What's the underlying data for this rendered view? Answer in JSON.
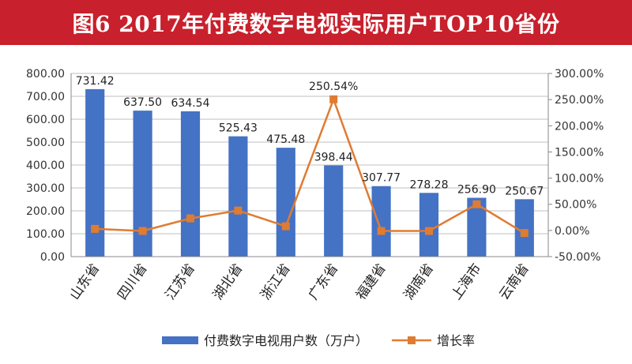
{
  "page_title": "图6  2017年付费数字电视实际用户TOP10省份",
  "chart_data": {
    "type": "bar",
    "title": "图6  2017年付费数字电视实际用户TOP10省份",
    "categories": [
      "山东省",
      "四川省",
      "江苏省",
      "湖北省",
      "浙江省",
      "广东省",
      "福建省",
      "湖南省",
      "上海市",
      "云南省"
    ],
    "series": [
      {
        "name": "付费数字电视用户数（万户）",
        "type": "bar",
        "axis": "left",
        "color": "#4472c4",
        "values": [
          731.42,
          637.5,
          634.54,
          525.43,
          475.48,
          398.44,
          307.77,
          278.28,
          256.9,
          250.67
        ],
        "labels": [
          "731.42",
          "637.50",
          "634.54",
          "525.43",
          "475.48",
          "398.44",
          "307.77",
          "278.28",
          "256.90",
          "250.67"
        ]
      },
      {
        "name": "增长率",
        "type": "line",
        "axis": "right",
        "color": "#e07b32",
        "values": [
          3.0,
          -1.0,
          23.0,
          38.0,
          8.0,
          250.54,
          -1.0,
          -1.0,
          50.0,
          -5.0
        ],
        "point_labels": {
          "5": "250.54%"
        }
      }
    ],
    "y_left": {
      "min": 0,
      "max": 800,
      "ticks": [
        0,
        100,
        200,
        300,
        400,
        500,
        600,
        700,
        800
      ],
      "tick_labels": [
        "0.00",
        "100.00",
        "200.00",
        "300.00",
        "400.00",
        "500.00",
        "600.00",
        "700.00",
        "800.00"
      ]
    },
    "y_right": {
      "min": -50,
      "max": 300,
      "ticks": [
        -50,
        0,
        50,
        100,
        150,
        200,
        250,
        300
      ],
      "tick_labels": [
        "-50.00%",
        "0.00%",
        "50.00%",
        "100.00%",
        "150.00%",
        "200.00%",
        "250.00%",
        "300.00%"
      ]
    },
    "legend_position": "bottom",
    "grid": true
  }
}
